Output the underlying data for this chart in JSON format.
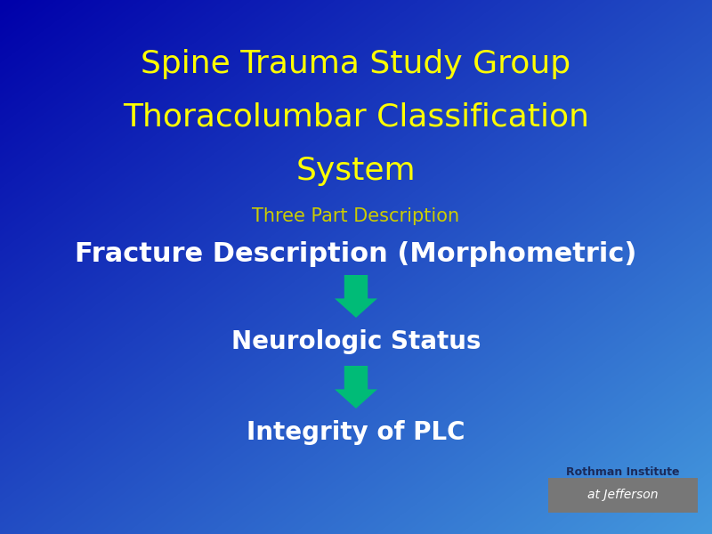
{
  "title_line1": "Spine Trauma Study Group",
  "title_line2": "Thoracolumbar Classification",
  "title_line3": "System",
  "title_color": "#FFFF00",
  "subtitle": "Three Part Description",
  "subtitle_color": "#CCCC00",
  "item1": "Fracture Description (Morphometric)",
  "item2": "Neurologic Status",
  "item3": "Integrity of PLC",
  "item_color": "#FFFFFF",
  "arrow_color": "#00BB77",
  "bg_color_topleft": "#0000AA",
  "bg_color_bottomright": "#4499DD",
  "logo_text1": "Rothman Institute",
  "logo_text2": "at Jefferson",
  "logo_bg": "#777777",
  "logo_dark": "#1A2A5A",
  "title_fontsize": 26,
  "subtitle_fontsize": 15,
  "item1_fontsize": 22,
  "item2_fontsize": 20,
  "item3_fontsize": 20,
  "fig_width": 8.0,
  "fig_height": 6.0,
  "dpi": 100
}
